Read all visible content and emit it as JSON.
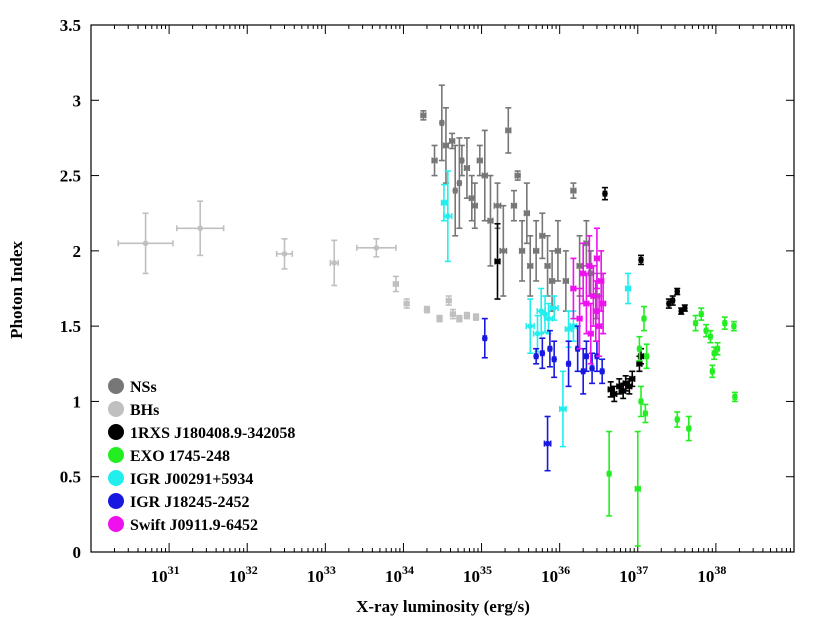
{
  "chart_data": {
    "type": "scatter",
    "title": "",
    "xlabel": "X-ray luminosity (erg/s)",
    "ylabel": "Photon Index",
    "x_scale": "log",
    "xlim": [
      1e+30,
      1e+39
    ],
    "ylim": [
      0,
      3.5
    ],
    "x_ticks": [
      {
        "value": 1e+31,
        "base": "10",
        "exp": "31"
      },
      {
        "value": 1e+32,
        "base": "10",
        "exp": "32"
      },
      {
        "value": 1e+33,
        "base": "10",
        "exp": "33"
      },
      {
        "value": 1e+34,
        "base": "10",
        "exp": "34"
      },
      {
        "value": 1e+35,
        "base": "10",
        "exp": "35"
      },
      {
        "value": 1e+36,
        "base": "10",
        "exp": "36"
      },
      {
        "value": 1e+37,
        "base": "10",
        "exp": "37"
      },
      {
        "value": 1e+38,
        "base": "10",
        "exp": "38"
      }
    ],
    "y_ticks": [
      "0",
      "0.5",
      "1",
      "1.5",
      "2",
      "2.5",
      "3",
      "3.5"
    ],
    "grid": false,
    "legend_position": "bottom-left",
    "series": [
      {
        "name": "NSs",
        "color": "#777777",
        "points": [
          {
            "x": 1.8e+34,
            "y": 2.9,
            "xerr": 0.03,
            "yerr": 0.03
          },
          {
            "x": 2.5e+34,
            "y": 2.6,
            "xerr": 0.03,
            "yerr": 0.1
          },
          {
            "x": 3.1e+34,
            "y": 2.85,
            "xerr": 0.02,
            "yerr": 0.25
          },
          {
            "x": 3.5e+34,
            "y": 2.7,
            "xerr": 0.03,
            "yerr": 0.25
          },
          {
            "x": 4.2e+34,
            "y": 2.73,
            "xerr": 0.03,
            "yerr": 0.05
          },
          {
            "x": 4.6e+34,
            "y": 2.4,
            "xerr": 0.02,
            "yerr": 0.3
          },
          {
            "x": 5.2e+34,
            "y": 2.45,
            "xerr": 0.02,
            "yerr": 0.3
          },
          {
            "x": 5.6e+34,
            "y": 2.6,
            "xerr": 0.02,
            "yerr": 0.1
          },
          {
            "x": 6.5e+34,
            "y": 2.55,
            "xerr": 0.03,
            "yerr": 0.2
          },
          {
            "x": 7.5e+34,
            "y": 2.35,
            "xerr": 0.03,
            "yerr": 0.15
          },
          {
            "x": 8.2e+34,
            "y": 2.3,
            "xerr": 0.03,
            "yerr": 0.15
          },
          {
            "x": 9.5e+34,
            "y": 2.6,
            "xerr": 0.03,
            "yerr": 0.1
          },
          {
            "x": 1.1e+35,
            "y": 2.5,
            "xerr": 0.03,
            "yerr": 0.3
          },
          {
            "x": 1.3e+35,
            "y": 2.2,
            "xerr": 0.03,
            "yerr": 0.3
          },
          {
            "x": 1.6e+35,
            "y": 2.3,
            "xerr": 0.04,
            "yerr": 0.15
          },
          {
            "x": 1.9e+35,
            "y": 2.0,
            "xerr": 0.04,
            "yerr": 0.3
          },
          {
            "x": 2.2e+35,
            "y": 2.8,
            "xerr": 0.03,
            "yerr": 0.15
          },
          {
            "x": 2.6e+35,
            "y": 2.3,
            "xerr": 0.03,
            "yerr": 0.1
          },
          {
            "x": 2.9e+35,
            "y": 2.5,
            "xerr": 0.03,
            "yerr": 0.03
          },
          {
            "x": 3.3e+35,
            "y": 2.0,
            "xerr": 0.03,
            "yerr": 0.2
          },
          {
            "x": 3.8e+35,
            "y": 2.25,
            "xerr": 0.03,
            "yerr": 0.2
          },
          {
            "x": 4.2e+35,
            "y": 1.9,
            "xerr": 0.03,
            "yerr": 0.2
          },
          {
            "x": 5e+35,
            "y": 2.0,
            "xerr": 0.03,
            "yerr": 0.2
          },
          {
            "x": 6e+35,
            "y": 2.1,
            "xerr": 0.03,
            "yerr": 0.15
          },
          {
            "x": 7e+35,
            "y": 1.9,
            "xerr": 0.03,
            "yerr": 0.2
          },
          {
            "x": 8e+35,
            "y": 1.8,
            "xerr": 0.03,
            "yerr": 0.2
          },
          {
            "x": 9.5e+35,
            "y": 2.0,
            "xerr": 0.03,
            "yerr": 0.2
          },
          {
            "x": 1.2e+36,
            "y": 1.8,
            "xerr": 0.03,
            "yerr": 0.2
          },
          {
            "x": 1.5e+36,
            "y": 2.4,
            "xerr": 0.03,
            "yerr": 0.05
          },
          {
            "x": 1.8e+36,
            "y": 1.9,
            "xerr": 0.03,
            "yerr": 0.2
          },
          {
            "x": 2.2e+36,
            "y": 2.05,
            "xerr": 0.03,
            "yerr": 0.15
          },
          {
            "x": 2.5e+36,
            "y": 1.85,
            "xerr": 0.03,
            "yerr": 0.15
          },
          {
            "x": 3e+36,
            "y": 1.7,
            "xerr": 0.03,
            "yerr": 0.15
          }
        ]
      },
      {
        "name": "BHs",
        "color": "#c0c0c0",
        "points": [
          {
            "x": 5e+30,
            "y": 2.05,
            "xerr": 0.35,
            "yerr": 0.2
          },
          {
            "x": 2.5e+31,
            "y": 2.15,
            "xerr": 0.3,
            "yerr": 0.18
          },
          {
            "x": 3e+32,
            "y": 1.98,
            "xerr": 0.1,
            "yerr": 0.1
          },
          {
            "x": 1.3e+33,
            "y": 1.92,
            "xerr": 0.05,
            "yerr": 0.15
          },
          {
            "x": 4.5e+33,
            "y": 2.02,
            "xerr": 0.25,
            "yerr": 0.06
          },
          {
            "x": 8e+33,
            "y": 1.78,
            "xerr": 0.03,
            "yerr": 0.05
          },
          {
            "x": 1.1e+34,
            "y": 1.65,
            "xerr": 0.03,
            "yerr": 0.03
          },
          {
            "x": 2e+34,
            "y": 1.61,
            "xerr": 0.03,
            "yerr": 0.02
          },
          {
            "x": 2.9e+34,
            "y": 1.55,
            "xerr": 0.03,
            "yerr": 0.02
          },
          {
            "x": 3.8e+34,
            "y": 1.67,
            "xerr": 0.03,
            "yerr": 0.03
          },
          {
            "x": 4.3e+34,
            "y": 1.58,
            "xerr": 0.03,
            "yerr": 0.03
          },
          {
            "x": 5.2e+34,
            "y": 1.55,
            "xerr": 0.03,
            "yerr": 0.02
          },
          {
            "x": 6.5e+34,
            "y": 1.57,
            "xerr": 0.03,
            "yerr": 0.02
          },
          {
            "x": 8.5e+34,
            "y": 1.56,
            "xerr": 0.03,
            "yerr": 0.02
          }
        ]
      },
      {
        "name": "1RXS J180408.9-342058",
        "color": "#000000",
        "points": [
          {
            "x": 1.6e+35,
            "y": 1.93,
            "xerr": 0.03,
            "yerr": 0.25
          },
          {
            "x": 3.8e+36,
            "y": 2.38,
            "xerr": 0.02,
            "yerr": 0.04
          },
          {
            "x": 4.5e+36,
            "y": 1.08,
            "xerr": 0.03,
            "yerr": 0.05
          },
          {
            "x": 5e+36,
            "y": 1.05,
            "xerr": 0.03,
            "yerr": 0.05
          },
          {
            "x": 5.8e+36,
            "y": 1.1,
            "xerr": 0.03,
            "yerr": 0.05
          },
          {
            "x": 6.5e+36,
            "y": 1.07,
            "xerr": 0.03,
            "yerr": 0.05
          },
          {
            "x": 7e+36,
            "y": 1.12,
            "xerr": 0.03,
            "yerr": 0.05
          },
          {
            "x": 7.8e+36,
            "y": 1.1,
            "xerr": 0.03,
            "yerr": 0.05
          },
          {
            "x": 8.5e+36,
            "y": 1.15,
            "xerr": 0.03,
            "yerr": 0.05
          },
          {
            "x": 1.05e+37,
            "y": 1.25,
            "xerr": 0.03,
            "yerr": 0.05
          },
          {
            "x": 1.1e+37,
            "y": 1.3,
            "xerr": 0.03,
            "yerr": 0.05
          },
          {
            "x": 1.1e+37,
            "y": 1.94,
            "xerr": 0.02,
            "yerr": 0.03
          },
          {
            "x": 2.5e+37,
            "y": 1.65,
            "xerr": 0.02,
            "yerr": 0.03
          },
          {
            "x": 2.8e+37,
            "y": 1.67,
            "xerr": 0.02,
            "yerr": 0.03
          },
          {
            "x": 3.2e+37,
            "y": 1.73,
            "xerr": 0.02,
            "yerr": 0.02
          },
          {
            "x": 3.6e+37,
            "y": 1.6,
            "xerr": 0.02,
            "yerr": 0.02
          },
          {
            "x": 4e+37,
            "y": 1.62,
            "xerr": 0.02,
            "yerr": 0.02
          }
        ]
      },
      {
        "name": "EXO 1745-248",
        "color": "#22ee22",
        "points": [
          {
            "x": 4.3e+36,
            "y": 0.52,
            "xerr": 0.02,
            "yerr": 0.28
          },
          {
            "x": 1e+37,
            "y": 0.42,
            "xerr": 0.03,
            "yerr": 0.38
          },
          {
            "x": 1.05e+37,
            "y": 1.35,
            "xerr": 0.02,
            "yerr": 0.08
          },
          {
            "x": 1.1e+37,
            "y": 1.0,
            "xerr": 0.02,
            "yerr": 0.1
          },
          {
            "x": 1.2e+37,
            "y": 1.55,
            "xerr": 0.02,
            "yerr": 0.08
          },
          {
            "x": 1.25e+37,
            "y": 0.92,
            "xerr": 0.02,
            "yerr": 0.06
          },
          {
            "x": 1.3e+37,
            "y": 1.3,
            "xerr": 0.02,
            "yerr": 0.08
          },
          {
            "x": 3.2e+37,
            "y": 0.88,
            "xerr": 0.02,
            "yerr": 0.05
          },
          {
            "x": 4.5e+37,
            "y": 0.82,
            "xerr": 0.02,
            "yerr": 0.08
          },
          {
            "x": 5.5e+37,
            "y": 1.52,
            "xerr": 0.02,
            "yerr": 0.05
          },
          {
            "x": 6.5e+37,
            "y": 1.58,
            "xerr": 0.02,
            "yerr": 0.04
          },
          {
            "x": 7.5e+37,
            "y": 1.47,
            "xerr": 0.02,
            "yerr": 0.04
          },
          {
            "x": 8.5e+37,
            "y": 1.43,
            "xerr": 0.02,
            "yerr": 0.04
          },
          {
            "x": 9e+37,
            "y": 1.2,
            "xerr": 0.02,
            "yerr": 0.04
          },
          {
            "x": 9.5e+37,
            "y": 1.32,
            "xerr": 0.02,
            "yerr": 0.04
          },
          {
            "x": 1.05e+38,
            "y": 1.35,
            "xerr": 0.02,
            "yerr": 0.04
          },
          {
            "x": 1.3e+38,
            "y": 1.52,
            "xerr": 0.02,
            "yerr": 0.04
          },
          {
            "x": 1.7e+38,
            "y": 1.5,
            "xerr": 0.02,
            "yerr": 0.03
          },
          {
            "x": 1.75e+38,
            "y": 1.03,
            "xerr": 0.02,
            "yerr": 0.03
          }
        ]
      },
      {
        "name": "IGR J00291+5934",
        "color": "#22eeee",
        "points": [
          {
            "x": 3.3e+34,
            "y": 2.32,
            "xerr": 0.03,
            "yerr": 0.12
          },
          {
            "x": 3.7e+34,
            "y": 2.23,
            "xerr": 0.05,
            "yerr": 0.3
          },
          {
            "x": 4.2e+35,
            "y": 1.5,
            "xerr": 0.05,
            "yerr": 0.18
          },
          {
            "x": 5.2e+35,
            "y": 1.45,
            "xerr": 0.05,
            "yerr": 0.12
          },
          {
            "x": 5.8e+35,
            "y": 1.6,
            "xerr": 0.05,
            "yerr": 0.15
          },
          {
            "x": 6.5e+35,
            "y": 1.58,
            "xerr": 0.05,
            "yerr": 0.12
          },
          {
            "x": 7.2e+35,
            "y": 1.55,
            "xerr": 0.05,
            "yerr": 0.1
          },
          {
            "x": 8.5e+35,
            "y": 1.62,
            "xerr": 0.05,
            "yerr": 0.08
          },
          {
            "x": 1.1e+36,
            "y": 0.95,
            "xerr": 0.04,
            "yerr": 0.25
          },
          {
            "x": 1.3e+36,
            "y": 1.48,
            "xerr": 0.04,
            "yerr": 0.12
          },
          {
            "x": 1.5e+36,
            "y": 1.5,
            "xerr": 0.04,
            "yerr": 0.1
          },
          {
            "x": 7.5e+36,
            "y": 1.75,
            "xerr": 0.03,
            "yerr": 0.1
          }
        ]
      },
      {
        "name": "IGR J18245-2452",
        "color": "#1818e0",
        "points": [
          {
            "x": 1.1e+35,
            "y": 1.42,
            "xerr": 0.02,
            "yerr": 0.13
          },
          {
            "x": 5e+35,
            "y": 1.3,
            "xerr": 0.02,
            "yerr": 0.05
          },
          {
            "x": 6e+35,
            "y": 1.32,
            "xerr": 0.02,
            "yerr": 0.1
          },
          {
            "x": 7e+35,
            "y": 0.72,
            "xerr": 0.04,
            "yerr": 0.18
          },
          {
            "x": 7.5e+35,
            "y": 1.35,
            "xerr": 0.02,
            "yerr": 0.12
          },
          {
            "x": 8.5e+35,
            "y": 1.28,
            "xerr": 0.02,
            "yerr": 0.12
          },
          {
            "x": 1.3e+36,
            "y": 1.25,
            "xerr": 0.02,
            "yerr": 0.15
          },
          {
            "x": 1.7e+36,
            "y": 1.35,
            "xerr": 0.02,
            "yerr": 0.15
          },
          {
            "x": 2e+36,
            "y": 1.2,
            "xerr": 0.02,
            "yerr": 0.15
          },
          {
            "x": 2.2e+36,
            "y": 1.3,
            "xerr": 0.02,
            "yerr": 0.1
          },
          {
            "x": 2.6e+36,
            "y": 1.22,
            "xerr": 0.02,
            "yerr": 0.1
          },
          {
            "x": 3e+36,
            "y": 1.3,
            "xerr": 0.02,
            "yerr": 0.1
          },
          {
            "x": 3.5e+36,
            "y": 1.2,
            "xerr": 0.02,
            "yerr": 0.08
          }
        ]
      },
      {
        "name": "Swift J0911.9-6452",
        "color": "#ee10ee",
        "points": [
          {
            "x": 1.5e+36,
            "y": 1.75,
            "xerr": 0.03,
            "yerr": 0.2
          },
          {
            "x": 1.8e+36,
            "y": 1.55,
            "xerr": 0.03,
            "yerr": 0.2
          },
          {
            "x": 2e+36,
            "y": 1.85,
            "xerr": 0.03,
            "yerr": 0.2
          },
          {
            "x": 2.2e+36,
            "y": 1.65,
            "xerr": 0.03,
            "yerr": 0.2
          },
          {
            "x": 2.4e+36,
            "y": 1.9,
            "xerr": 0.03,
            "yerr": 0.2
          },
          {
            "x": 2.5e+36,
            "y": 1.45,
            "xerr": 0.03,
            "yerr": 0.2
          },
          {
            "x": 2.7e+36,
            "y": 1.7,
            "xerr": 0.03,
            "yerr": 0.2
          },
          {
            "x": 2.9e+36,
            "y": 1.6,
            "xerr": 0.03,
            "yerr": 0.2
          },
          {
            "x": 3e+36,
            "y": 1.95,
            "xerr": 0.03,
            "yerr": 0.2
          },
          {
            "x": 3.2e+36,
            "y": 1.5,
            "xerr": 0.03,
            "yerr": 0.2
          },
          {
            "x": 3.4e+36,
            "y": 1.8,
            "xerr": 0.03,
            "yerr": 0.2
          },
          {
            "x": 3.6e+36,
            "y": 1.65,
            "xerr": 0.03,
            "yerr": 0.2
          }
        ]
      }
    ]
  }
}
